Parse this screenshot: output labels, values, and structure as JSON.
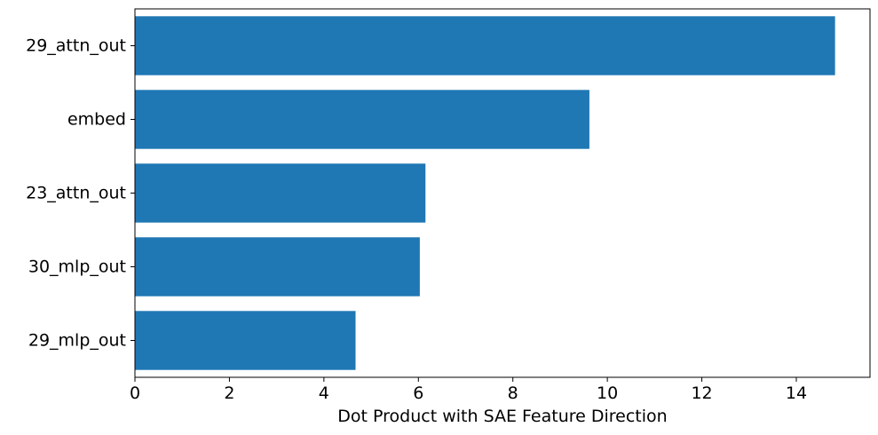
{
  "chart_data": {
    "type": "bar",
    "orientation": "horizontal",
    "categories": [
      "29_attn_out",
      "embed",
      "23_attn_out",
      "30_mlp_out",
      "29_mlp_out"
    ],
    "values": [
      14.82,
      9.62,
      6.15,
      6.03,
      4.67
    ],
    "title": "",
    "xlabel": "Dot Product with SAE Feature Direction",
    "ylabel": "",
    "xlim": [
      0,
      15.56
    ],
    "xticks": [
      0,
      2,
      4,
      6,
      8,
      10,
      12,
      14
    ],
    "bar_color": "#1f77b4",
    "grid": false,
    "legend": false
  }
}
